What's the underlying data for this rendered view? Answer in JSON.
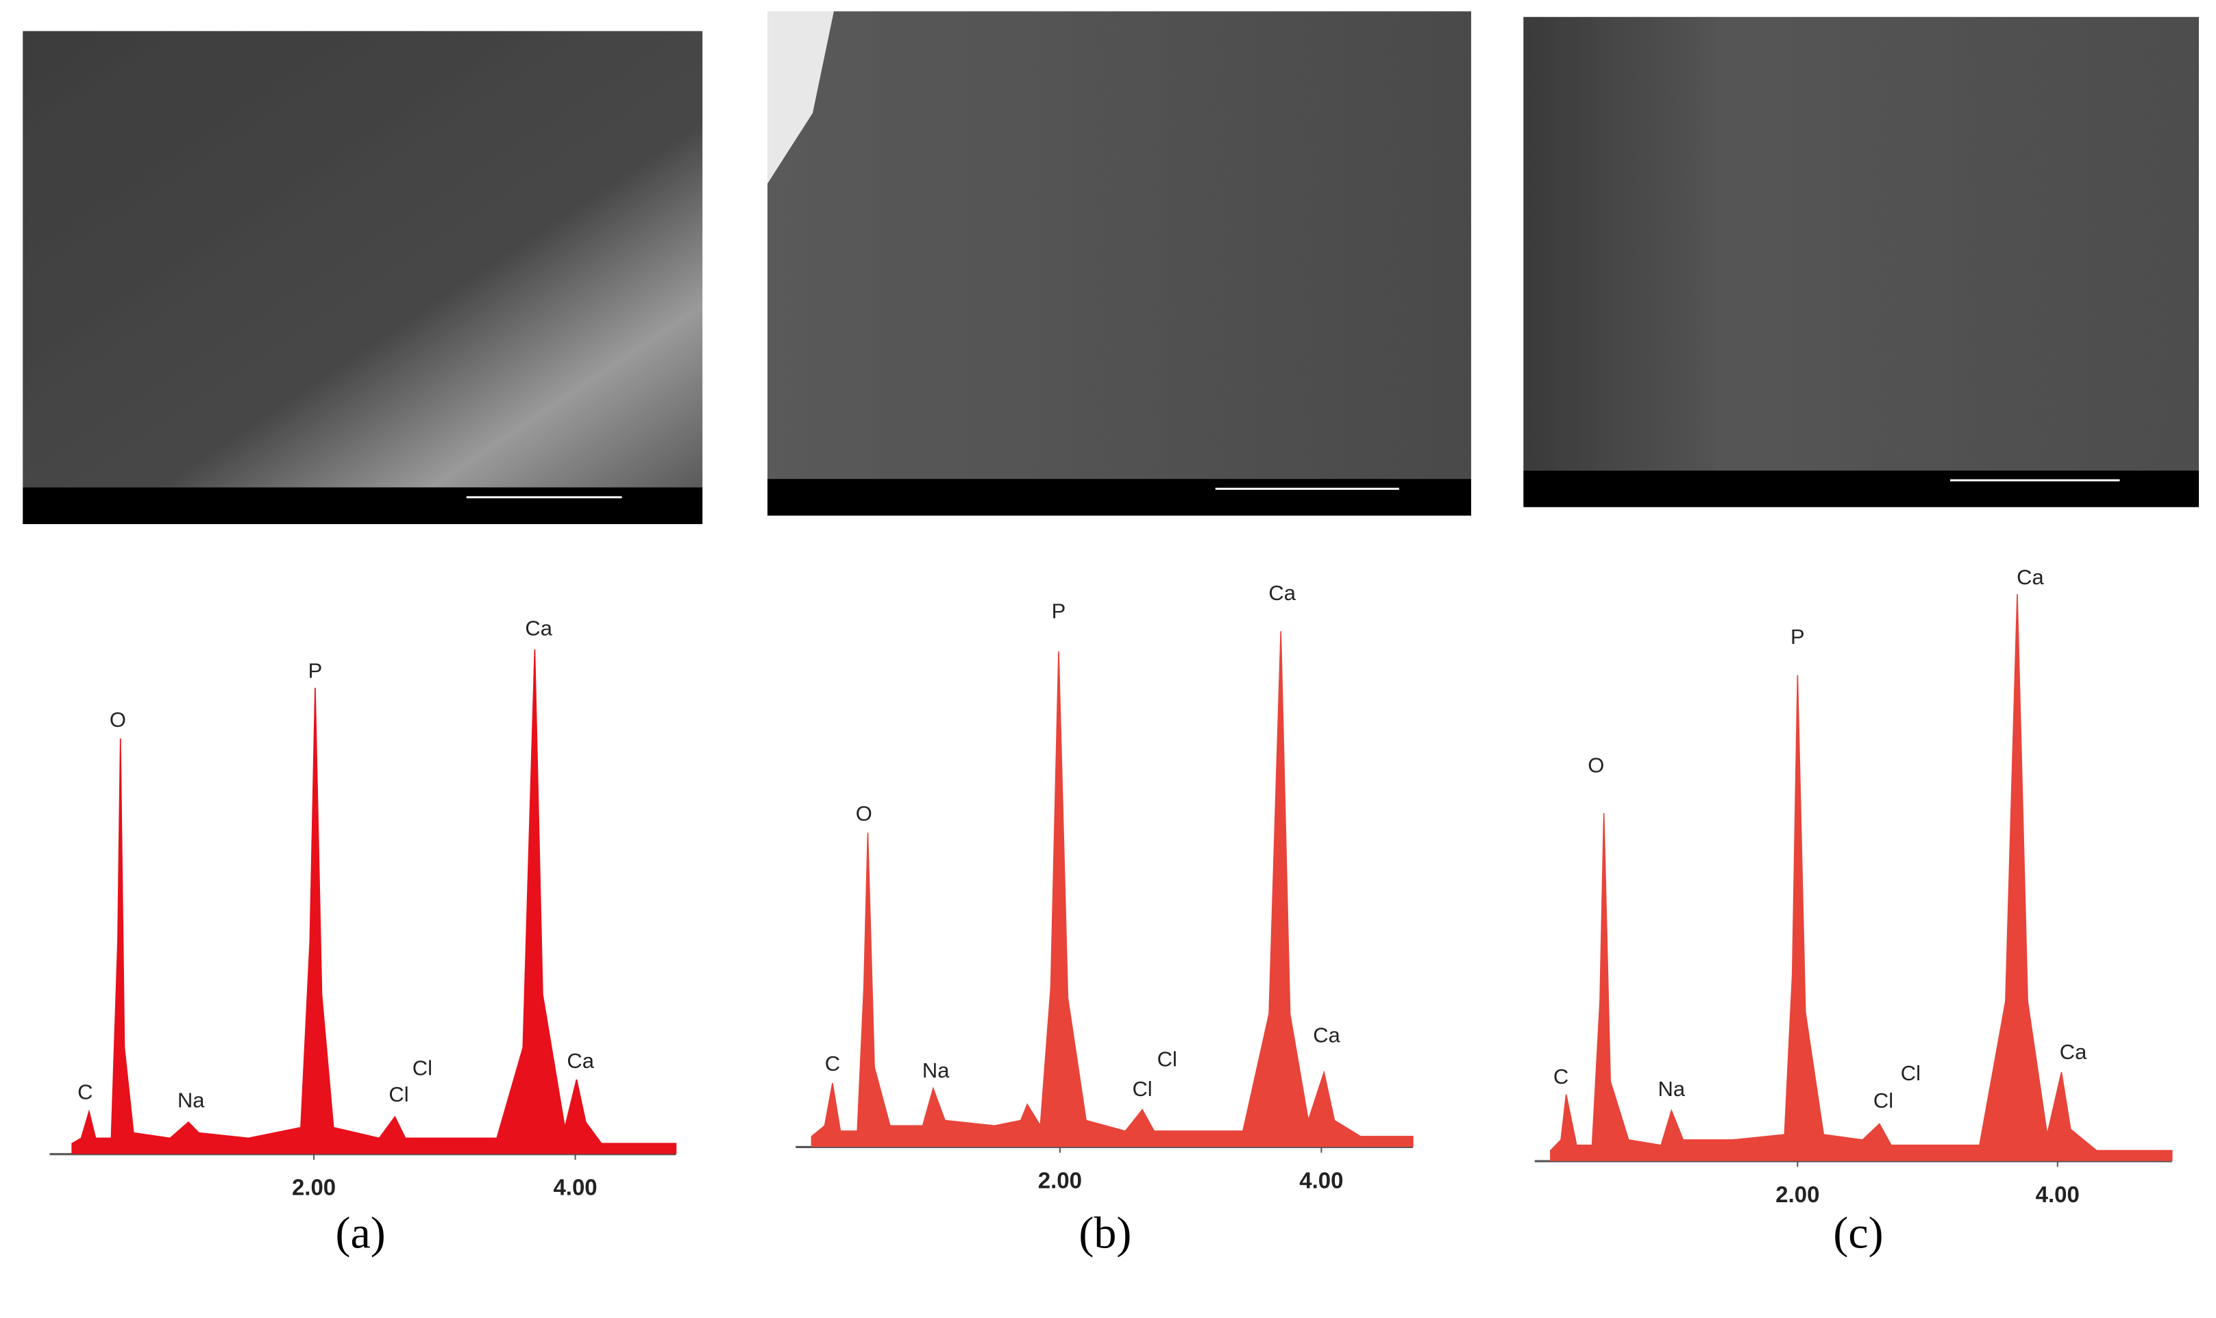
{
  "chart_data": [
    {
      "type": "spectrum",
      "label": "(a)",
      "color": "#e8101a",
      "x": [
        0.15,
        0.22,
        0.28,
        0.33,
        0.45,
        0.5,
        0.52,
        0.55,
        0.62,
        0.9,
        1.04,
        1.12,
        1.5,
        1.9,
        1.97,
        2.01,
        2.06,
        2.15,
        2.5,
        2.62,
        2.7,
        3.4,
        3.6,
        3.69,
        3.75,
        3.92,
        4.01,
        4.08,
        4.2,
        4.77
      ],
      "values": [
        2,
        3,
        8,
        3,
        3,
        40,
        78,
        20,
        4,
        3,
        6,
        4,
        3,
        5,
        40,
        87.5,
        30,
        5,
        3,
        7,
        3,
        3,
        20,
        94.7,
        30,
        5,
        14,
        6,
        2,
        2
      ],
      "xlim": [
        0,
        4.77
      ],
      "ylim": [
        0,
        110
      ],
      "xticks": [
        {
          "value": 2,
          "label": "2.00"
        },
        {
          "value": 4,
          "label": "4.00"
        }
      ],
      "annotations": [
        {
          "text": "O",
          "x": 0.5,
          "y": 81.2
        },
        {
          "text": "P",
          "x": 2.01,
          "y": 90.4
        },
        {
          "text": "Ca",
          "x": 3.72,
          "y": 98.4
        },
        {
          "text": "C",
          "x": 0.25,
          "y": 11.4
        },
        {
          "text": "Na",
          "x": 1.06,
          "y": 9.8
        },
        {
          "text": "Cl",
          "x": 2.65,
          "y": 10.9
        },
        {
          "text": "Cl",
          "x": 2.83,
          "y": 15.9
        },
        {
          "text": "Ca",
          "x": 4.04,
          "y": 17.2
        }
      ]
    },
    {
      "type": "spectrum",
      "label": "(b)",
      "color": "#e8443a",
      "x": [
        0.1,
        0.2,
        0.26,
        0.32,
        0.45,
        0.5,
        0.53,
        0.58,
        0.7,
        0.95,
        1.03,
        1.12,
        1.5,
        1.7,
        1.75,
        1.85,
        1.93,
        1.99,
        2.06,
        2.2,
        2.5,
        2.63,
        2.72,
        3.4,
        3.6,
        3.69,
        3.76,
        3.9,
        4.02,
        4.1,
        4.3,
        4.7
      ],
      "values": [
        2,
        4,
        12,
        3,
        3,
        30,
        59,
        15,
        4,
        4,
        11,
        5,
        4,
        5,
        8,
        4,
        30,
        93,
        28,
        5,
        3,
        7,
        3,
        3,
        25,
        96.8,
        25,
        5,
        14,
        5,
        2,
        2
      ],
      "xlim": [
        0,
        4.7
      ],
      "ylim": [
        0,
        110
      ],
      "xticks": [
        {
          "value": 2,
          "label": "2.00"
        },
        {
          "value": 4,
          "label": "4.00"
        }
      ],
      "annotations": [
        {
          "text": "O",
          "x": 0.5,
          "y": 62.3
        },
        {
          "text": "P",
          "x": 1.99,
          "y": 100.3
        },
        {
          "text": "Ca",
          "x": 3.7,
          "y": 103.7
        },
        {
          "text": "C",
          "x": 0.26,
          "y": 15.4
        },
        {
          "text": "Na",
          "x": 1.05,
          "y": 14.1
        },
        {
          "text": "Cl",
          "x": 2.63,
          "y": 10.6
        },
        {
          "text": "Cl",
          "x": 2.82,
          "y": 16.2
        },
        {
          "text": "Ca",
          "x": 4.04,
          "y": 20.7
        }
      ]
    },
    {
      "type": "spectrum",
      "label": "(c)",
      "color": "#e8443a",
      "x": [
        0.1,
        0.18,
        0.22,
        0.3,
        0.42,
        0.48,
        0.51,
        0.56,
        0.7,
        0.95,
        1.03,
        1.12,
        1.5,
        1.9,
        1.96,
        2.0,
        2.06,
        2.2,
        2.5,
        2.63,
        2.72,
        3.4,
        3.6,
        3.69,
        3.77,
        3.92,
        4.03,
        4.1,
        4.3,
        4.88
      ],
      "values": [
        2,
        4,
        12.5,
        3,
        3,
        30,
        65.3,
        15,
        4,
        3,
        9.5,
        4,
        4,
        5,
        35,
        91.2,
        28,
        5,
        4,
        7,
        3,
        3,
        30,
        106.4,
        30,
        5,
        16.7,
        6,
        2,
        2
      ],
      "xlim": [
        0,
        4.88
      ],
      "ylim": [
        0,
        110
      ],
      "xticks": [
        {
          "value": 2,
          "label": "2.00"
        },
        {
          "value": 4,
          "label": "4.00"
        }
      ],
      "annotations": [
        {
          "text": "O",
          "x": 0.45,
          "y": 74
        },
        {
          "text": "P",
          "x": 2.0,
          "y": 98.1
        },
        {
          "text": "Ca",
          "x": 3.79,
          "y": 109.3
        },
        {
          "text": "C",
          "x": 0.18,
          "y": 15.6
        },
        {
          "text": "Na",
          "x": 1.03,
          "y": 13.3
        },
        {
          "text": "Cl",
          "x": 2.66,
          "y": 11.1
        },
        {
          "text": "Cl",
          "x": 2.87,
          "y": 16.2
        },
        {
          "text": "Ca",
          "x": 4.12,
          "y": 20.2
        }
      ]
    }
  ]
}
